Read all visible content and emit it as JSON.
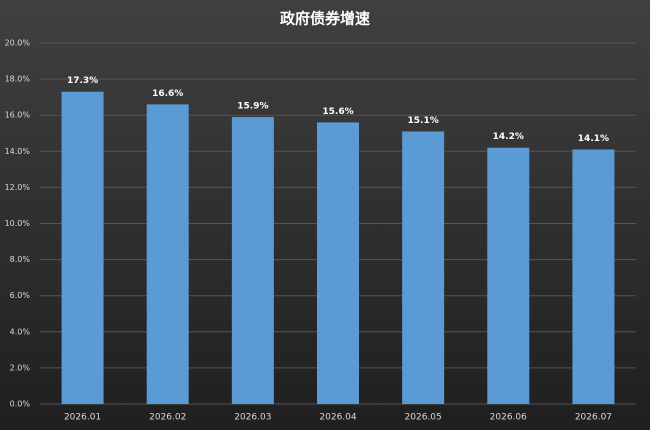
{
  "chart_data": {
    "type": "bar",
    "title": "政府债券增速",
    "categories": [
      "2026.01",
      "2026.02",
      "2026.03",
      "2026.04",
      "2026.05",
      "2026.06",
      "2026.07"
    ],
    "values": [
      17.3,
      16.6,
      15.9,
      15.6,
      15.1,
      14.2,
      14.1
    ],
    "value_labels": [
      "17.3%",
      "16.6%",
      "15.9%",
      "15.6%",
      "15.1%",
      "14.2%",
      "14.1%"
    ],
    "color": "#5b9bd5",
    "ylim": [
      0,
      20
    ],
    "yticks": [
      {
        "value": 0,
        "label": "0.0%"
      },
      {
        "value": 2,
        "label": "2.0%"
      },
      {
        "value": 4,
        "label": "4.0%"
      },
      {
        "value": 6,
        "label": "6.0%"
      },
      {
        "value": 8,
        "label": "8.0%"
      },
      {
        "value": 10,
        "label": "10.0%"
      },
      {
        "value": 12,
        "label": "12.0%"
      },
      {
        "value": 14,
        "label": "14.0%"
      },
      {
        "value": 16,
        "label": "16.0%"
      },
      {
        "value": 18,
        "label": "18.0%"
      },
      {
        "value": 20,
        "label": "20.0%"
      }
    ],
    "grid": true
  }
}
